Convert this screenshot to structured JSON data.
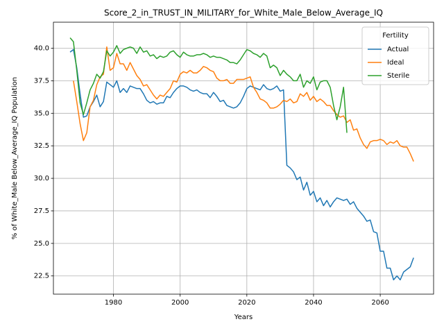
{
  "chart_data": {
    "type": "line",
    "title": "Score_2_in_TRUST_IN_MILITARY_for_White_Male_Below_Average_IQ",
    "xlabel": "Years",
    "ylabel": "% of White_Male Below_Average_IQ Population",
    "legend_title": "Fertility",
    "legend": "upper right",
    "grid": true,
    "xlim": [
      1962,
      2076
    ],
    "ylim": [
      21.1,
      42.0
    ],
    "xticks": [
      1980,
      2000,
      2020,
      2040,
      2060
    ],
    "yticks": [
      22.5,
      {
        "value": 25,
        "label": "25.0"
      },
      27.5,
      {
        "value": 30,
        "label": "30.0"
      },
      32.5,
      {
        "value": 35,
        "label": "35.0"
      },
      37.5,
      {
        "value": 40,
        "label": "40.0"
      }
    ],
    "x": [
      1967,
      1968,
      1969,
      1970,
      1971,
      1972,
      1973,
      1974,
      1975,
      1976,
      1977,
      1978,
      1979,
      1980,
      1981,
      1982,
      1983,
      1984,
      1985,
      1986,
      1987,
      1988,
      1989,
      1990,
      1991,
      1992,
      1993,
      1994,
      1995,
      1996,
      1997,
      1998,
      1999,
      2000,
      2001,
      2002,
      2003,
      2004,
      2005,
      2006,
      2007,
      2008,
      2009,
      2010,
      2011,
      2012,
      2013,
      2014,
      2015,
      2016,
      2017,
      2018,
      2019,
      2020,
      2021,
      2022,
      2023,
      2024,
      2025,
      2026,
      2027,
      2028,
      2029,
      2030,
      2031,
      2032,
      2033,
      2034,
      2035,
      2036,
      2037,
      2038,
      2039,
      2040,
      2041,
      2042,
      2043,
      2044,
      2045,
      2046,
      2047,
      2048,
      2049,
      2050,
      2051,
      2052,
      2053,
      2054,
      2055,
      2056,
      2057,
      2058,
      2059,
      2060,
      2061,
      2062,
      2063,
      2064,
      2065,
      2066,
      2067,
      2068,
      2069,
      2070
    ],
    "series": [
      {
        "name": "Actual",
        "color": "#1f77b4",
        "values": [
          39.7,
          39.9,
          38.5,
          36.5,
          34.7,
          34.8,
          35.5,
          35.9,
          36.4,
          35.5,
          35.9,
          37.4,
          37.2,
          37.0,
          37.5,
          36.6,
          36.9,
          36.6,
          37.1,
          37.0,
          36.9,
          36.9,
          36.5,
          36.0,
          35.8,
          35.9,
          35.7,
          35.8,
          35.8,
          36.3,
          36.2,
          36.6,
          36.9,
          37.1,
          37.1,
          37.0,
          36.8,
          36.7,
          36.8,
          36.6,
          36.5,
          36.5,
          36.2,
          36.6,
          36.3,
          35.9,
          36.0,
          35.6,
          35.5,
          35.4,
          35.5,
          35.8,
          36.3,
          36.9,
          37.1,
          37.0,
          36.9,
          36.8,
          37.2,
          36.9,
          36.8,
          36.9,
          37.1,
          36.7,
          36.8,
          31.0,
          30.8,
          30.5,
          29.9,
          30.1,
          29.1,
          29.7,
          28.7,
          29.0,
          28.2,
          28.5,
          27.9,
          28.3,
          27.8,
          28.2,
          28.5,
          28.4,
          28.3,
          28.4,
          28.0,
          28.2,
          27.7,
          27.4,
          27.1,
          26.7,
          26.8,
          25.9,
          25.8,
          24.4,
          24.4,
          23.1,
          23.1,
          22.2,
          22.5,
          22.2,
          22.8,
          23.0,
          23.2,
          23.9
        ]
      },
      {
        "name": "Ideal",
        "color": "#ff7f0e",
        "values": [
          null,
          37.5,
          35.9,
          34.2,
          32.9,
          33.5,
          35.5,
          36.0,
          37.2,
          37.8,
          38.0,
          40.1,
          38.3,
          38.5,
          39.6,
          38.8,
          38.8,
          38.3,
          38.9,
          38.4,
          37.9,
          37.6,
          37.1,
          37.2,
          36.8,
          36.4,
          36.1,
          36.4,
          36.3,
          36.6,
          36.9,
          37.5,
          37.4,
          38.0,
          38.2,
          38.1,
          38.3,
          38.1,
          38.1,
          38.3,
          38.6,
          38.5,
          38.3,
          38.2,
          37.7,
          37.5,
          37.5,
          37.6,
          37.3,
          37.3,
          37.6,
          37.6,
          37.6,
          37.7,
          37.8,
          37.0,
          36.6,
          36.1,
          36.0,
          35.8,
          35.4,
          35.4,
          35.5,
          35.7,
          36.0,
          35.9,
          36.1,
          35.8,
          35.9,
          36.5,
          36.3,
          36.6,
          36.0,
          36.3,
          35.9,
          36.1,
          35.9,
          35.6,
          35.6,
          35.2,
          34.9,
          34.7,
          34.8,
          34.3,
          34.5,
          33.7,
          33.8,
          33.1,
          32.6,
          32.3,
          32.8,
          32.9,
          32.9,
          33.0,
          32.9,
          32.6,
          32.8,
          32.7,
          32.9,
          32.5,
          32.4,
          32.4,
          31.9,
          31.3
        ]
      },
      {
        "name": "Sterile",
        "color": "#2ca02c",
        "values": [
          40.8,
          40.5,
          38.3,
          35.8,
          34.9,
          35.8,
          36.8,
          37.3,
          38.0,
          37.7,
          38.2,
          39.8,
          39.4,
          39.7,
          40.2,
          39.6,
          39.9,
          40.0,
          40.1,
          40.0,
          39.6,
          40.1,
          39.7,
          39.8,
          39.4,
          39.5,
          39.2,
          39.4,
          39.3,
          39.4,
          39.7,
          39.8,
          39.5,
          39.3,
          39.7,
          39.5,
          39.4,
          39.4,
          39.5,
          39.5,
          39.6,
          39.5,
          39.3,
          39.4,
          39.3,
          39.3,
          39.2,
          39.1,
          38.9,
          38.9,
          38.8,
          39.1,
          39.5,
          39.9,
          39.8,
          39.6,
          39.5,
          39.3,
          39.6,
          39.4,
          38.5,
          38.7,
          38.5,
          37.9,
          38.3,
          38.0,
          37.8,
          37.5,
          37.5,
          38.0,
          37.0,
          37.5,
          37.3,
          37.8,
          36.8,
          37.4,
          37.5,
          37.5,
          37.0,
          35.6,
          34.5,
          35.5,
          37.0,
          33.5,
          null,
          null,
          null,
          null,
          null,
          null,
          null,
          null,
          null,
          null,
          null,
          null,
          null,
          null,
          null,
          null,
          null,
          null,
          null,
          null
        ]
      }
    ]
  }
}
